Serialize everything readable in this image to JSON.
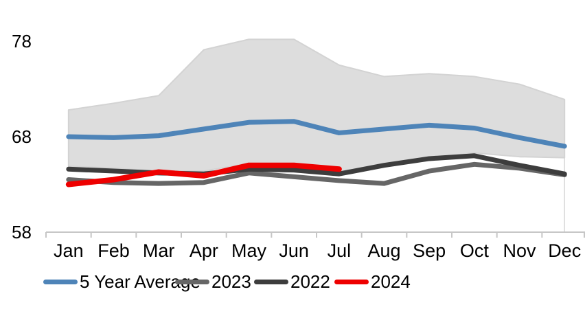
{
  "chart_data": {
    "type": "line",
    "title": "",
    "months": [
      "Jan",
      "Feb",
      "Mar",
      "Apr",
      "May",
      "Jun",
      "Jul",
      "Aug",
      "Sep",
      "Oct",
      "Nov",
      "Dec"
    ],
    "y_ticks": [
      58,
      68,
      78
    ],
    "y_range": [
      58,
      80
    ],
    "grid": false,
    "legend_position": "bottom",
    "band": {
      "name": "5-year-range",
      "fill": "#DDDDDD",
      "edge": "#D3D3D3",
      "top": [
        70.8,
        71.5,
        72.3,
        77.1,
        78.2,
        78.2,
        75.5,
        74.3,
        74.6,
        74.3,
        73.5,
        71.9
      ],
      "bottom": [
        64.9,
        64.7,
        64.4,
        64.4,
        65.2,
        65.2,
        64.3,
        65.2,
        65.8,
        66.3,
        65.9,
        65.8
      ]
    },
    "series": [
      {
        "name": "5 Year Average",
        "color": "#4E84B8",
        "width": 7,
        "values": [
          68.0,
          67.9,
          68.1,
          68.8,
          69.5,
          69.6,
          68.4,
          68.8,
          69.2,
          68.9,
          67.9,
          67.0
        ]
      },
      {
        "name": "2023",
        "color": "#666666",
        "width": 7,
        "values": [
          63.5,
          63.2,
          63.1,
          63.2,
          64.2,
          63.8,
          63.4,
          63.1,
          64.4,
          65.1,
          64.7,
          64.0
        ]
      },
      {
        "name": "2022",
        "color": "#3D3D3D",
        "width": 7,
        "values": [
          64.6,
          64.4,
          64.2,
          64.1,
          64.6,
          64.5,
          64.1,
          65.0,
          65.7,
          66.0,
          65.0,
          64.1
        ]
      },
      {
        "name": "2024",
        "color": "#EE0000",
        "width": 8,
        "values": [
          63.0,
          63.5,
          64.3,
          63.9,
          65.0,
          65.0,
          64.6,
          null,
          null,
          null,
          null,
          null
        ]
      }
    ],
    "axis_color": "#C6C6C6",
    "text_color": "#000000"
  }
}
